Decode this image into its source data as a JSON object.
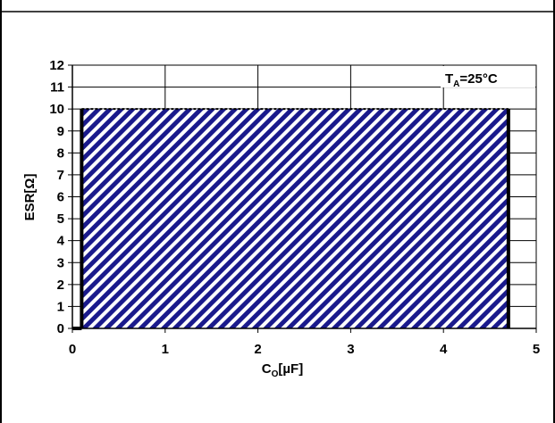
{
  "chart_data": {
    "type": "area",
    "xlabel": {
      "main": "C",
      "sub": "O",
      "rest": "[µF]"
    },
    "ylabel": "ESR[Ω]",
    "annotation": {
      "main": "T",
      "sub": "A",
      "rest": "=25°C"
    },
    "xlim": [
      0,
      5
    ],
    "ylim": [
      0,
      12
    ],
    "x_ticks": [
      "0",
      "1",
      "2",
      "3",
      "4",
      "5"
    ],
    "y_ticks": [
      "0",
      "1",
      "2",
      "3",
      "4",
      "5",
      "6",
      "7",
      "8",
      "9",
      "10",
      "11",
      "12"
    ],
    "grid": true,
    "stable_region": {
      "x_min": 0.1,
      "x_max": 4.7,
      "y_min": 0,
      "y_max": 10,
      "fill": "hatched",
      "hatch_color": "#1a1a8c"
    }
  }
}
